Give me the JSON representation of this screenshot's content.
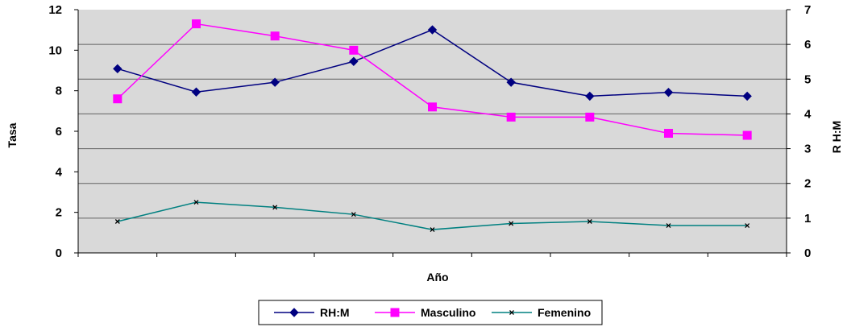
{
  "chart_data": {
    "type": "line",
    "title": "",
    "xlabel": "Año",
    "ylabel": "Tasa",
    "y2label": "R H:M",
    "ylim": [
      0,
      12
    ],
    "y2lim": [
      0,
      7
    ],
    "yticks": [
      "0",
      "2",
      "4",
      "6",
      "8",
      "10",
      "12"
    ],
    "y2ticks": [
      "0",
      "1",
      "2",
      "3",
      "4",
      "5",
      "6",
      "7"
    ],
    "categories": [
      "",
      "",
      "",
      "",
      "",
      "",
      "",
      "",
      ""
    ],
    "grid": true,
    "plot_background": "#d9d9d9",
    "legend_position": "bottom",
    "series": [
      {
        "name": "RH:M",
        "axis": "right",
        "color": "#000080",
        "marker": "diamond",
        "values": [
          5.3,
          4.63,
          4.91,
          5.51,
          6.42,
          4.91,
          4.51,
          4.62,
          4.51
        ]
      },
      {
        "name": "Masculino",
        "axis": "left",
        "color": "#ff00ff",
        "marker": "square",
        "values": [
          7.6,
          11.3,
          10.7,
          10.0,
          7.2,
          6.7,
          6.7,
          5.9,
          5.8
        ]
      },
      {
        "name": "Femenino",
        "axis": "left",
        "color": "#008080",
        "marker": "x",
        "values": [
          1.55,
          2.5,
          2.25,
          1.9,
          1.15,
          1.45,
          1.55,
          1.35,
          1.35
        ]
      }
    ]
  }
}
